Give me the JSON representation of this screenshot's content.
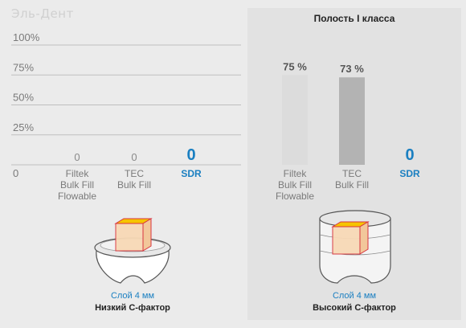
{
  "brand": "Эль-Дент",
  "colors": {
    "accent": "#1a7fc1",
    "bar_filtek": "#dcdcdc",
    "bar_tec": "#b3b3b3",
    "axis_text": "#7a7a7a",
    "zero_text": "#8a8a8a",
    "grid": "#bfbfbf",
    "right_panel_bg": "#e2e2e2",
    "cube_fill": "#f8d9b6",
    "cube_top": "#f6c400",
    "cube_edge": "#d8343f"
  },
  "chart_data": [
    {
      "type": "bar",
      "title": "",
      "xlabel": "",
      "ylabel": "",
      "ylim": [
        0,
        100
      ],
      "yticks": [
        "100%",
        "75%",
        "50%",
        "25%",
        "0"
      ],
      "categories": [
        [
          "Filtek",
          "Bulk Fill",
          "Flowable"
        ],
        [
          "TEC",
          "Bulk Fill"
        ],
        [
          "SDR"
        ]
      ],
      "values": [
        0,
        0,
        0
      ],
      "value_labels": [
        "0",
        "0",
        "0"
      ],
      "grid": true,
      "legend": "none",
      "caption": {
        "line1": "Слой 4 мм",
        "line2": "Низкий С-фактор"
      }
    },
    {
      "type": "bar",
      "title": "Полость I класса",
      "xlabel": "",
      "ylabel": "",
      "ylim": [
        0,
        100
      ],
      "categories": [
        [
          "Filtek",
          "Bulk Fill",
          "Flowable"
        ],
        [
          "TEC",
          "Bulk Fill"
        ],
        [
          "SDR"
        ]
      ],
      "values": [
        75,
        73,
        0
      ],
      "value_labels": [
        "75 %",
        "73 %",
        "0"
      ],
      "grid": false,
      "legend": "none",
      "caption": {
        "line1": "Слой 4 мм",
        "line2": "Высокий С-фактор"
      }
    }
  ]
}
